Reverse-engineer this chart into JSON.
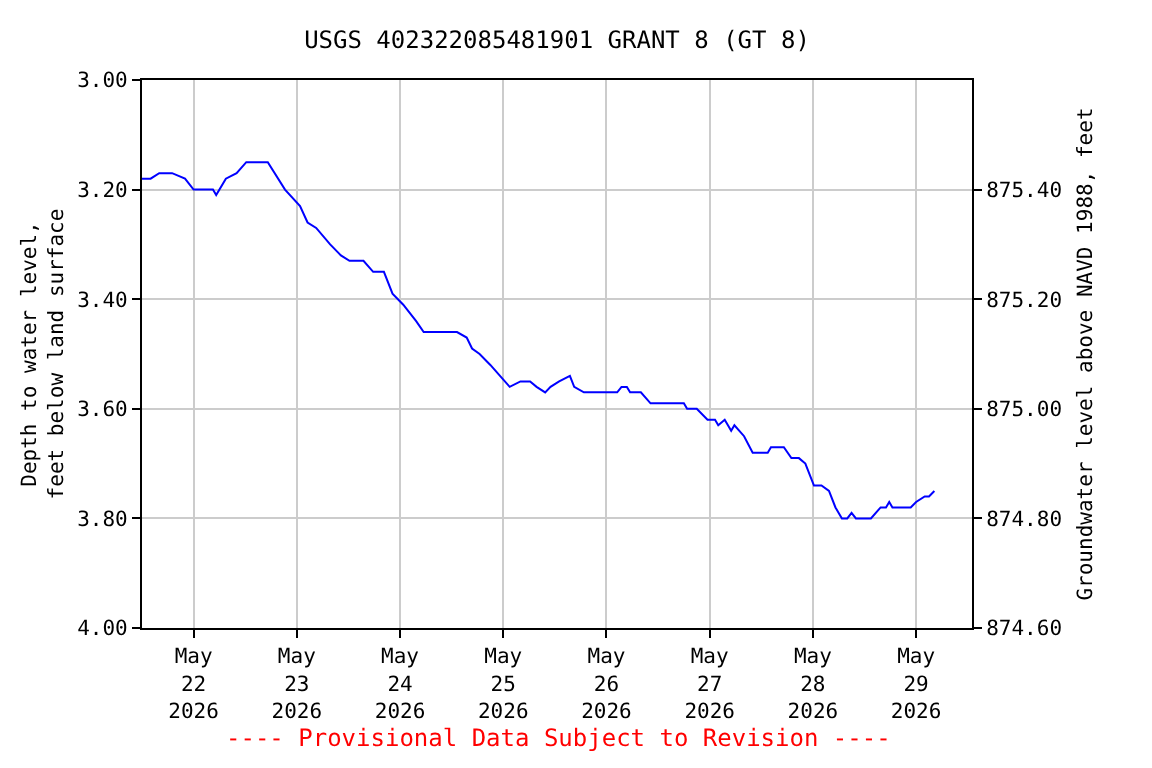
{
  "chart_data": {
    "type": "line",
    "title": "USGS 402322085481901 GRANT 8 (GT 8)",
    "xlabel": null,
    "ylabel": "Depth to water level, feet below land surface",
    "y2label": "Groundwater level above NAVD 1988, feet",
    "annotations": [
      "---- Provisional Data Subject to Revision ----"
    ],
    "x": [
      "2026-05-21T12:00",
      "2026-05-21T14:00",
      "2026-05-21T16:00",
      "2026-05-21T19:00",
      "2026-05-21T22:00",
      "2026-05-22T00:00",
      "2026-05-22T04:30",
      "2026-05-22T05:15",
      "2026-05-22T07:30",
      "2026-05-22T10:00",
      "2026-05-22T12:15",
      "2026-05-22T17:15",
      "2026-05-22T21:15",
      "2026-05-23T00:45",
      "2026-05-23T02:30",
      "2026-05-23T04:30",
      "2026-05-23T07:45",
      "2026-05-23T10:15",
      "2026-05-23T12:15",
      "2026-05-23T15:30",
      "2026-05-23T17:45",
      "2026-05-23T20:15",
      "2026-05-23T22:15",
      "2026-05-24T00:45",
      "2026-05-24T03:45",
      "2026-05-24T05:30",
      "2026-05-24T13:15",
      "2026-05-24T15:30",
      "2026-05-24T16:45",
      "2026-05-24T18:30",
      "2026-05-24T21:00",
      "2026-05-24T23:15",
      "2026-05-25T01:30",
      "2026-05-25T04:00",
      "2026-05-25T06:15",
      "2026-05-25T07:45",
      "2026-05-25T09:45",
      "2026-05-25T11:00",
      "2026-05-25T13:00",
      "2026-05-25T15:30",
      "2026-05-25T16:30",
      "2026-05-25T18:45",
      "2026-05-26T02:30",
      "2026-05-26T03:30",
      "2026-05-26T04:45",
      "2026-05-26T05:30",
      "2026-05-26T08:00",
      "2026-05-26T10:15",
      "2026-05-26T18:00",
      "2026-05-26T18:45",
      "2026-05-26T21:00",
      "2026-05-26T23:30",
      "2026-05-27T01:15",
      "2026-05-27T02:00",
      "2026-05-27T03:30",
      "2026-05-27T05:00",
      "2026-05-27T05:45",
      "2026-05-27T08:00",
      "2026-05-27T10:00",
      "2026-05-27T13:30",
      "2026-05-27T14:15",
      "2026-05-27T17:15",
      "2026-05-27T19:00",
      "2026-05-27T20:45",
      "2026-05-27T22:15",
      "2026-05-28T00:15",
      "2026-05-28T02:00",
      "2026-05-28T03:45",
      "2026-05-28T05:15",
      "2026-05-28T06:45",
      "2026-05-28T08:00",
      "2026-05-28T09:00",
      "2026-05-28T10:00",
      "2026-05-28T13:30",
      "2026-05-28T15:45",
      "2026-05-28T17:00",
      "2026-05-28T17:45",
      "2026-05-28T18:30",
      "2026-05-28T22:45",
      "2026-05-29T00:00",
      "2026-05-29T02:00",
      "2026-05-29T03:00",
      "2026-05-29T04:15"
    ],
    "series": [
      {
        "color": "#0000ff",
        "values": [
          3.18,
          3.18,
          3.17,
          3.17,
          3.18,
          3.2,
          3.2,
          3.21,
          3.18,
          3.17,
          3.15,
          3.15,
          3.2,
          3.23,
          3.26,
          3.27,
          3.3,
          3.32,
          3.33,
          3.33,
          3.35,
          3.35,
          3.39,
          3.41,
          3.44,
          3.46,
          3.46,
          3.47,
          3.49,
          3.5,
          3.52,
          3.54,
          3.56,
          3.55,
          3.55,
          3.56,
          3.57,
          3.56,
          3.55,
          3.54,
          3.56,
          3.57,
          3.57,
          3.56,
          3.56,
          3.57,
          3.57,
          3.59,
          3.59,
          3.6,
          3.6,
          3.62,
          3.62,
          3.63,
          3.62,
          3.64,
          3.63,
          3.65,
          3.68,
          3.68,
          3.67,
          3.67,
          3.69,
          3.69,
          3.7,
          3.74,
          3.74,
          3.75,
          3.78,
          3.8,
          3.8,
          3.79,
          3.8,
          3.8,
          3.78,
          3.78,
          3.77,
          3.78,
          3.78,
          3.77,
          3.76,
          3.76,
          3.75
        ]
      }
    ],
    "xlim": [
      "2026-05-21T12:00",
      "2026-05-29T13:00"
    ],
    "xticks": [
      {
        "value": "2026-05-22",
        "label": "May\n22\n2026"
      },
      {
        "value": "2026-05-23",
        "label": "May\n23\n2026"
      },
      {
        "value": "2026-05-24",
        "label": "May\n24\n2026"
      },
      {
        "value": "2026-05-25",
        "label": "May\n25\n2026"
      },
      {
        "value": "2026-05-26",
        "label": "May\n26\n2026"
      },
      {
        "value": "2026-05-27",
        "label": "May\n27\n2026"
      },
      {
        "value": "2026-05-28",
        "label": "May\n28\n2026"
      },
      {
        "value": "2026-05-29",
        "label": "May\n29\n2026"
      }
    ],
    "ylim": [
      4.0,
      3.0
    ],
    "yticks": [
      {
        "value": 3.0,
        "label": "3.00"
      },
      {
        "value": 3.2,
        "label": "3.20"
      },
      {
        "value": 3.4,
        "label": "3.40"
      },
      {
        "value": 3.6,
        "label": "3.60"
      },
      {
        "value": 3.8,
        "label": "3.80"
      },
      {
        "value": 4.0,
        "label": "4.00"
      }
    ],
    "y2lim": [
      874.6,
      875.6
    ],
    "y2ticks": [
      {
        "value": 874.6,
        "label": "874.60"
      },
      {
        "value": 874.8,
        "label": "874.80"
      },
      {
        "value": 875.0,
        "label": "875.00"
      },
      {
        "value": 875.2,
        "label": "875.20"
      },
      {
        "value": 875.4,
        "label": "875.40"
      }
    ],
    "grid": true,
    "marker": "none",
    "line_style": "solid"
  }
}
